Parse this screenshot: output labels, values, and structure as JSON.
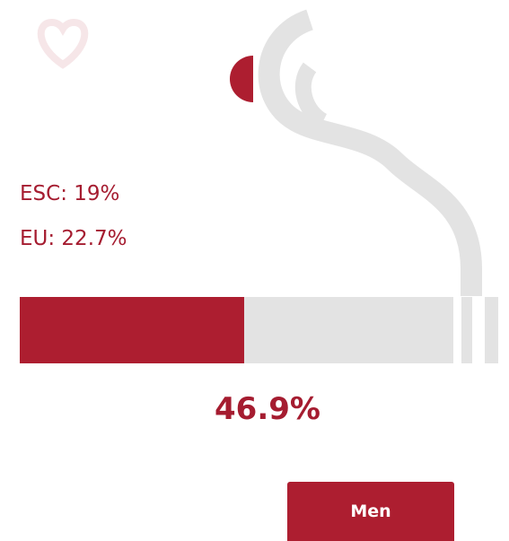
{
  "stats": {
    "esc": "ESC: 19%",
    "eu": "EU: 22.7%"
  },
  "bar": {
    "value": 46.9,
    "label": "46.9%",
    "max": 100,
    "color": "#ad1e30"
  },
  "button": {
    "label": "Men"
  }
}
